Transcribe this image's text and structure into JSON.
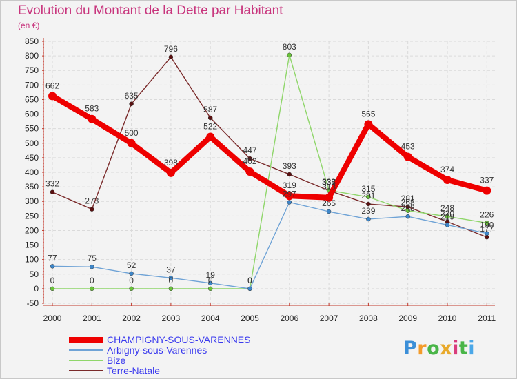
{
  "header": {
    "title": "Evolution du Montant de la Dette par Habitant",
    "unit": "(en €)"
  },
  "logo": {
    "text": "Proxiti",
    "letters": [
      "P",
      "r",
      "o",
      "x",
      "i",
      "t",
      "i"
    ]
  },
  "chart_data": {
    "type": "line",
    "title": "Evolution du Montant de la Dette par Habitant",
    "subtitle": "(en €)",
    "xlabel": "",
    "ylabel": "",
    "x": [
      "2000",
      "2001",
      "2002",
      "2003",
      "2004",
      "2005",
      "2006",
      "2007",
      "2008",
      "2009",
      "2010",
      "2011"
    ],
    "ylim": [
      -50,
      850
    ],
    "yticks": [
      -50,
      0,
      50,
      100,
      150,
      200,
      250,
      300,
      350,
      400,
      450,
      500,
      550,
      600,
      650,
      700,
      750,
      800,
      850
    ],
    "grid": true,
    "legend_position": "bottom-left",
    "series": [
      {
        "name": "Terre-Natale",
        "color": "#7a2a2a",
        "marker_color": "#5a1010",
        "line_width": 1.4,
        "marker_radius": 3,
        "values": [
          332,
          273,
          635,
          796,
          587,
          447,
          393,
          337,
          291,
          281,
          230,
          177
        ],
        "labels": [
          "332",
          "273",
          "635",
          "796",
          "587",
          "447",
          "393",
          "337",
          "291",
          "281",
          "230",
          "177"
        ]
      },
      {
        "name": "Bize",
        "color": "#8fd66a",
        "marker_color": "#6ac33b",
        "line_width": 1.4,
        "marker_radius": 3,
        "values": [
          0,
          0,
          0,
          0,
          0,
          0,
          803,
          338,
          315,
          268,
          248,
          226
        ],
        "labels": [
          "0",
          "0",
          "0",
          "0",
          "0",
          "0",
          "803",
          "338",
          "315",
          "268",
          "248",
          "226"
        ]
      },
      {
        "name": "Arbigny-sous-Varennes",
        "color": "#6fa3d6",
        "marker_color": "#3d86c9",
        "line_width": 1.4,
        "marker_radius": 3,
        "values": [
          77,
          75,
          52,
          37,
          19,
          0,
          297,
          265,
          239,
          248,
          219,
          190
        ],
        "labels": [
          "77",
          "75",
          "52",
          "37",
          "19",
          "0",
          "297",
          "265",
          "239",
          "248",
          "219",
          "190"
        ]
      },
      {
        "name": "CHAMPIGNY-SOUS-VARENNES",
        "color": "#ee0000",
        "marker_color": "#ee0000",
        "line_width": 8,
        "marker_radius": 6,
        "values": [
          662,
          583,
          500,
          398,
          522,
          402,
          319,
          313,
          565,
          453,
          374,
          337
        ],
        "labels": [
          "662",
          "583",
          "500",
          "398",
          "522",
          "402",
          "319",
          "313",
          "565",
          "453",
          "374",
          "337"
        ]
      }
    ],
    "legend_order": [
      "CHAMPIGNY-SOUS-VARENNES",
      "Arbigny-sous-Varennes",
      "Bize",
      "Terre-Natale"
    ]
  }
}
